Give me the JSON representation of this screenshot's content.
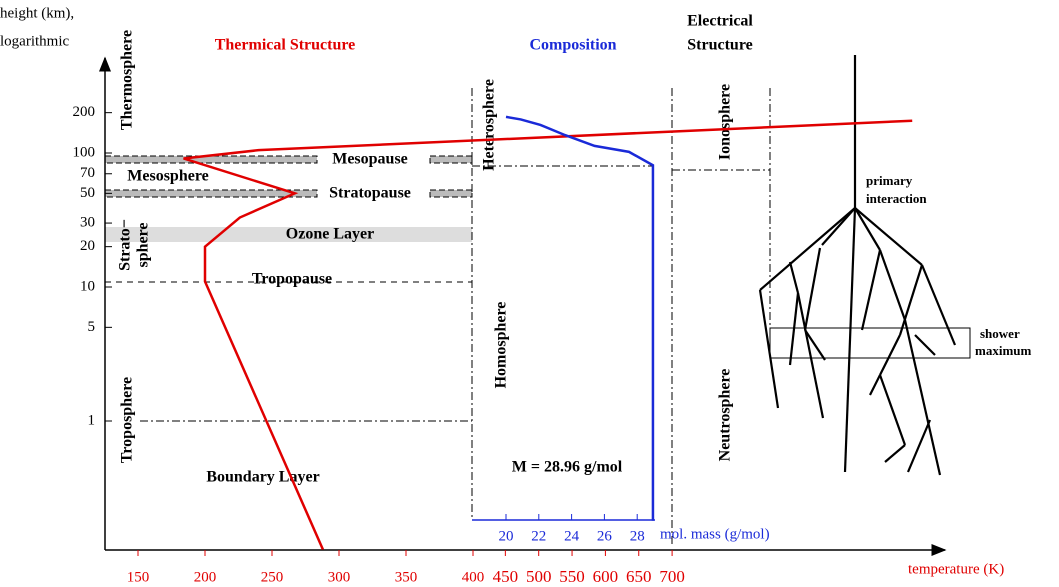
{
  "axes": {
    "y_label": [
      "height (km),",
      "logarithmic"
    ],
    "yticks": [
      1,
      5,
      10,
      20,
      30,
      50,
      70,
      100,
      200
    ],
    "x_label": "temperature (K)",
    "xticks": [
      150,
      200,
      250,
      300,
      350,
      400,
      450,
      500,
      550,
      600,
      650,
      700
    ],
    "mol_label": "mol. mass (g/mol)",
    "mol_ticks": [
      20,
      22,
      24,
      26,
      28
    ]
  },
  "sections": {
    "thermal": "Thermical Structure",
    "composition": "Composition",
    "electrical": [
      "Electrical",
      "Structure"
    ]
  },
  "layers": {
    "thermosphere": "Thermosphere",
    "mesosphere": "Mesosphere",
    "stratosphere": [
      "Strato−",
      "sphere"
    ],
    "troposphere": "Troposphere",
    "mesopause": "Mesopause",
    "stratopause": "Stratopause",
    "ozone": "Ozone Layer",
    "tropopause": "Tropopause",
    "boundary": "Boundary Layer",
    "heterosphere": "Heterosphere",
    "homosphere": "Homosphere",
    "molar_mass": "M = 28.96 g/mol",
    "ionosphere": "Ionosphere",
    "neutrosphere": "Neutrosphere",
    "primary": [
      "primary",
      "interaction"
    ],
    "shower_max": [
      "shower",
      "maximum"
    ]
  },
  "temperature_profile": {
    "height": [
      0.11,
      11,
      20,
      33,
      50,
      91,
      105,
      174
    ],
    "temperature": [
      288,
      200,
      200,
      226,
      267,
      184,
      240,
      1060
    ]
  },
  "composition": {
    "height": [
      0.18,
      81,
      102,
      113,
      136,
      162,
      178,
      186
    ],
    "mol_mass": [
      28.96,
      28.96,
      27.5,
      25.4,
      23.6,
      22.1,
      20.9,
      20
    ]
  }
}
